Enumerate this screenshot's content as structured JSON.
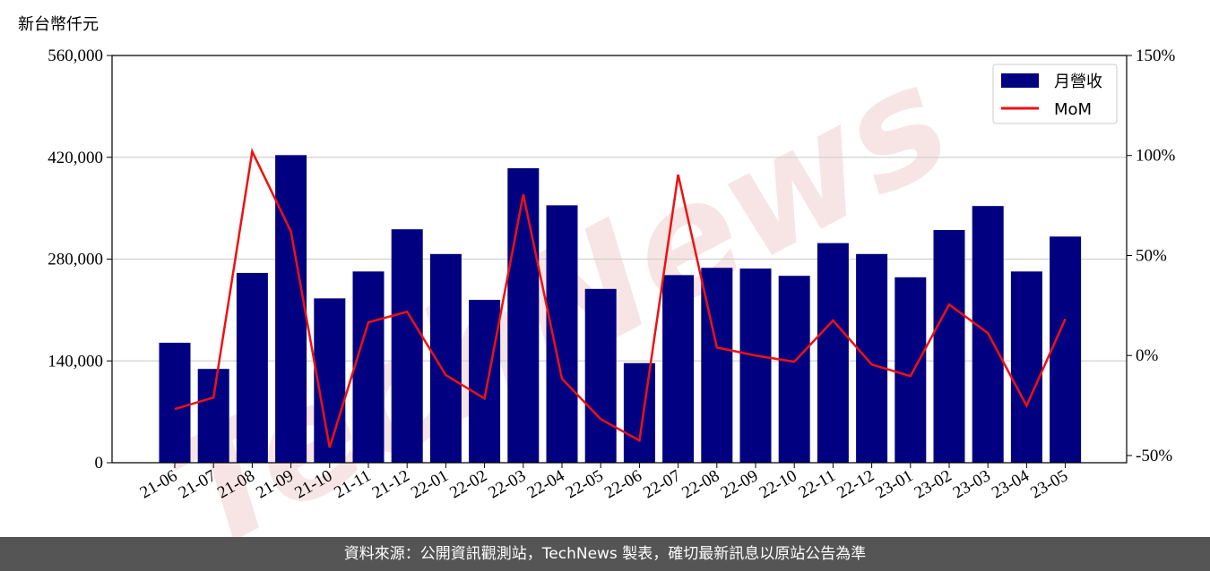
{
  "chart_data": {
    "type": "bar_line",
    "y_axis_label": "新台幣仟元",
    "watermark": "TechNews",
    "footer": "資料來源：公開資訊觀測站，TechNews 製表，確切最新訊息以原站公告為準",
    "legend": "upper right",
    "grid": true,
    "categories": [
      "21-06",
      "21-07",
      "21-08",
      "21-09",
      "21-10",
      "21-11",
      "21-12",
      "22-01",
      "22-02",
      "22-03",
      "22-04",
      "22-05",
      "22-06",
      "22-07",
      "22-08",
      "22-09",
      "22-10",
      "22-11",
      "22-12",
      "23-01",
      "23-02",
      "23-03",
      "23-04",
      "23-05"
    ],
    "ylim": [
      0,
      560000
    ],
    "yticks": [
      0,
      {
        "value": 140000,
        "label": "140,000"
      },
      {
        "value": 280000,
        "label": "280,000"
      },
      {
        "value": 420000,
        "label": "420,000"
      },
      {
        "value": 560000,
        "label": "560,000"
      }
    ],
    "y2lim": [
      -53.6,
      150
    ],
    "y2ticks": [
      {
        "value": -50,
        "label": "-50%"
      },
      {
        "value": 0,
        "label": "0%"
      },
      {
        "value": 50,
        "label": "50%"
      },
      {
        "value": 100,
        "label": "100%"
      },
      {
        "value": 150,
        "label": "150%"
      }
    ],
    "series": [
      {
        "name": "月營收",
        "type": "bar",
        "color": "#000080",
        "values": [
          165000,
          129000,
          261000,
          423000,
          226000,
          263000,
          321000,
          287000,
          224000,
          405000,
          354000,
          239000,
          137000,
          258000,
          268000,
          267000,
          257000,
          302000,
          287000,
          255000,
          320000,
          353000,
          263000,
          311000
        ]
      },
      {
        "name": "MoM",
        "type": "line",
        "axis": "y2",
        "color": "#ee1111",
        "values": [
          -26.8,
          -21,
          102,
          62,
          -46,
          16.6,
          21.9,
          -9.8,
          -21.5,
          80.5,
          -11.6,
          -31.8,
          -42.5,
          90.4,
          4.0,
          0,
          -3.1,
          17.5,
          -4.5,
          -10.3,
          25.5,
          11.2,
          -25.1,
          18.3
        ]
      }
    ]
  }
}
